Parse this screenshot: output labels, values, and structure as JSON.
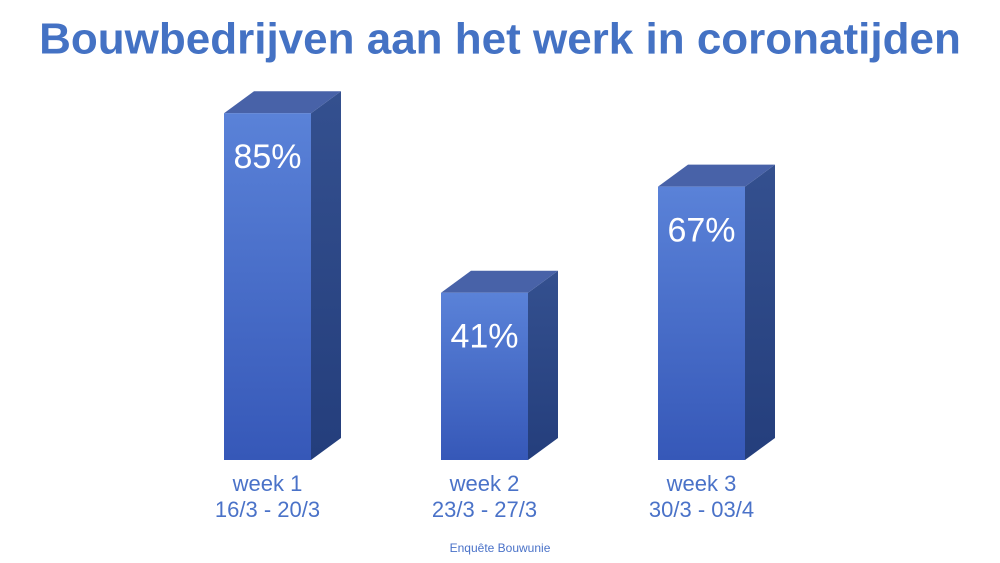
{
  "chart_data": {
    "type": "bar3d",
    "title": "Bouwbedrijven aan het werk in coronatijden",
    "categories": [
      [
        "week 1",
        "16/3 - 20/3"
      ],
      [
        "week 2",
        "23/3 - 27/3"
      ],
      [
        "week 3",
        "30/3 - 03/4"
      ]
    ],
    "values": [
      85,
      41,
      67
    ],
    "value_labels": [
      "85%",
      "41%",
      "67%"
    ],
    "color": "#4a70cf",
    "source": "Enquête Bouwunie"
  }
}
